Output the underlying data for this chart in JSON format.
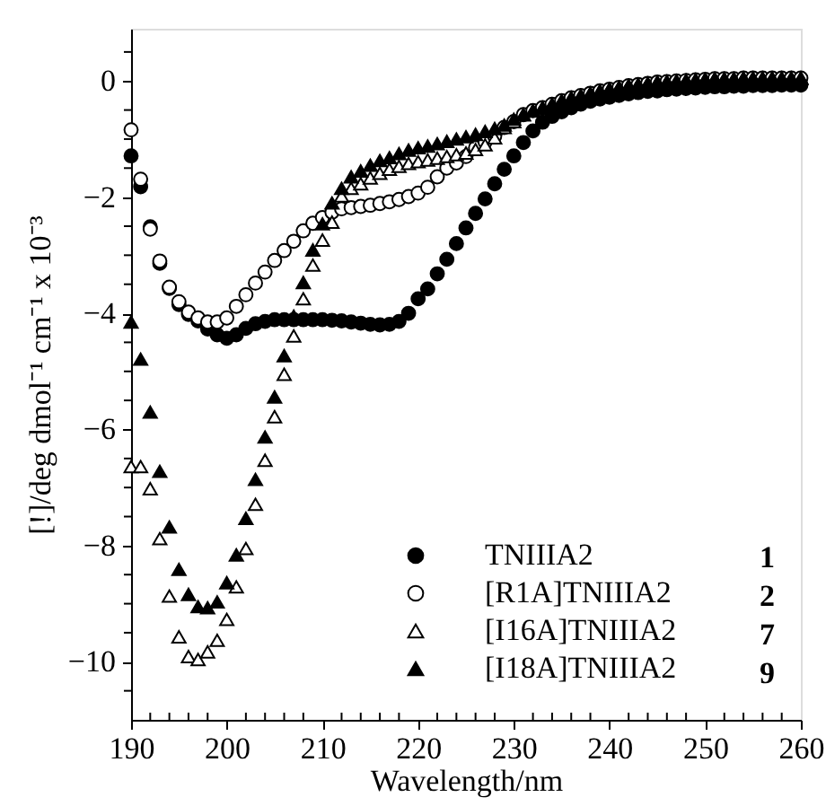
{
  "chart_data": {
    "type": "scatter",
    "xlabel": "Wavelength/nm",
    "ylabel": "[!]/deg dmol⁻¹ cm⁻¹ x 10⁻³",
    "legend": "bottom right",
    "annotations": [
      "1",
      "2",
      "7",
      "9"
    ],
    "xlim": [
      190,
      260
    ],
    "ylim": [
      -11,
      0.9
    ],
    "xticks": [
      190,
      {
        "value": 192,
        "label": null
      },
      {
        "value": 194,
        "label": null
      },
      {
        "value": 196,
        "label": null
      },
      {
        "value": 198,
        "label": null
      },
      200,
      {
        "value": 202,
        "label": null
      },
      {
        "value": 204,
        "label": null
      },
      {
        "value": 206,
        "label": null
      },
      {
        "value": 208,
        "label": null
      },
      210,
      {
        "value": 212,
        "label": null
      },
      {
        "value": 214,
        "label": null
      },
      {
        "value": 216,
        "label": null
      },
      {
        "value": 218,
        "label": null
      },
      220,
      {
        "value": 222,
        "label": null
      },
      {
        "value": 224,
        "label": null
      },
      {
        "value": 226,
        "label": null
      },
      {
        "value": 228,
        "label": null
      },
      230,
      {
        "value": 232,
        "label": null
      },
      {
        "value": 234,
        "label": null
      },
      {
        "value": 236,
        "label": null
      },
      {
        "value": 238,
        "label": null
      },
      240,
      {
        "value": 242,
        "label": null
      },
      {
        "value": 244,
        "label": null
      },
      {
        "value": 246,
        "label": null
      },
      {
        "value": 248,
        "label": null
      },
      250,
      {
        "value": 252,
        "label": null
      },
      {
        "value": 254,
        "label": null
      },
      {
        "value": 256,
        "label": null
      },
      {
        "value": 258,
        "label": null
      },
      260
    ],
    "yticks": [
      -10,
      {
        "value": -10.5,
        "label": null
      },
      {
        "value": -9.5,
        "label": null
      },
      {
        "value": -9,
        "label": null
      },
      {
        "value": -8.5,
        "label": null
      },
      -8,
      {
        "value": -7.5,
        "label": null
      },
      {
        "value": -7,
        "label": null
      },
      {
        "value": -6.5,
        "label": null
      },
      -6,
      {
        "value": -5.5,
        "label": null
      },
      {
        "value": -5,
        "label": null
      },
      {
        "value": -4.5,
        "label": null
      },
      -4,
      {
        "value": -3.5,
        "label": null
      },
      {
        "value": -3,
        "label": null
      },
      {
        "value": -2.5,
        "label": null
      },
      -2,
      {
        "value": -1.5,
        "label": null
      },
      {
        "value": -1,
        "label": null
      },
      {
        "value": -0.5,
        "label": null
      },
      0,
      {
        "value": 0.5,
        "label": null
      }
    ],
    "x": [
      190,
      191,
      192,
      193,
      194,
      195,
      196,
      197,
      198,
      199,
      200,
      201,
      202,
      203,
      204,
      205,
      206,
      207,
      208,
      209,
      210,
      211,
      212,
      213,
      214,
      215,
      216,
      217,
      218,
      219,
      220,
      221,
      222,
      223,
      224,
      225,
      226,
      227,
      228,
      229,
      230,
      231,
      232,
      233,
      234,
      235,
      236,
      237,
      238,
      239,
      240,
      241,
      242,
      243,
      244,
      245,
      246,
      247,
      248,
      249,
      250,
      251,
      252,
      253,
      254,
      255,
      256,
      257,
      258,
      259,
      260
    ],
    "series": [
      {
        "name": "TNIIIA2",
        "color": "#000000",
        "marker": "circle",
        "values": [
          -1.29,
          -1.82,
          -2.51,
          -3.14,
          -3.57,
          -3.85,
          -4.02,
          -4.13,
          -4.27,
          -4.37,
          -4.43,
          -4.37,
          -4.26,
          -4.18,
          -4.14,
          -4.11,
          -4.11,
          -4.11,
          -4.11,
          -4.11,
          -4.11,
          -4.12,
          -4.13,
          -4.15,
          -4.17,
          -4.19,
          -4.2,
          -4.19,
          -4.14,
          -4.0,
          -3.75,
          -3.58,
          -3.32,
          -3.07,
          -2.8,
          -2.53,
          -2.28,
          -2.03,
          -1.77,
          -1.52,
          -1.29,
          -1.06,
          -0.86,
          -0.71,
          -0.61,
          -0.53,
          -0.46,
          -0.4,
          -0.35,
          -0.31,
          -0.28,
          -0.25,
          -0.22,
          -0.2,
          -0.18,
          -0.17,
          -0.15,
          -0.14,
          -0.13,
          -0.12,
          -0.11,
          -0.1,
          -0.1,
          -0.09,
          -0.09,
          -0.08,
          -0.08,
          -0.08,
          -0.07,
          -0.07,
          -0.07
        ]
      },
      {
        "name": "[R1A]TNIIIA2",
        "color": "#ffffff",
        "marker": "circle",
        "values": [
          -0.84,
          -1.69,
          -2.55,
          -3.1,
          -3.55,
          -3.8,
          -3.98,
          -4.08,
          -4.15,
          -4.15,
          -4.08,
          -3.88,
          -3.68,
          -3.48,
          -3.29,
          -3.09,
          -2.92,
          -2.76,
          -2.58,
          -2.45,
          -2.35,
          -2.26,
          -2.2,
          -2.18,
          -2.16,
          -2.14,
          -2.11,
          -2.08,
          -2.04,
          -1.99,
          -1.93,
          -1.83,
          -1.65,
          -1.5,
          -1.41,
          -1.3,
          -1.15,
          -1.05,
          -0.95,
          -0.8,
          -0.7,
          -0.58,
          -0.51,
          -0.46,
          -0.4,
          -0.34,
          -0.29,
          -0.25,
          -0.21,
          -0.17,
          -0.14,
          -0.11,
          -0.08,
          -0.06,
          -0.04,
          -0.02,
          -0.01,
          0.0,
          0.01,
          0.02,
          0.03,
          0.04,
          0.04,
          0.04,
          0.05,
          0.05,
          0.05,
          0.05,
          0.05,
          0.05,
          0.05
        ]
      },
      {
        "name": "[I16A]TNIIIA2",
        "color": "#ffffff",
        "marker": "triangle",
        "values": [
          -6.64,
          -6.64,
          -7.02,
          -7.88,
          -8.87,
          -9.57,
          -9.91,
          -9.96,
          -9.83,
          -9.63,
          -9.27,
          -8.71,
          -8.05,
          -7.29,
          -6.53,
          -5.78,
          -5.05,
          -4.39,
          -3.75,
          -3.17,
          -2.74,
          -2.43,
          -1.98,
          -1.85,
          -1.77,
          -1.67,
          -1.59,
          -1.52,
          -1.47,
          -1.42,
          -1.39,
          -1.36,
          -1.33,
          -1.3,
          -1.27,
          -1.24,
          -1.18,
          -1.1,
          -0.98,
          -0.8,
          -0.7,
          -0.58,
          -0.51,
          -0.46,
          -0.4,
          -0.34,
          -0.29,
          -0.25,
          -0.21,
          -0.17,
          -0.14,
          -0.11,
          -0.08,
          -0.06,
          -0.04,
          -0.02,
          -0.01,
          0.0,
          0.01,
          0.02,
          0.03,
          0.04,
          0.04,
          0.04,
          0.05,
          0.05,
          0.05,
          0.05,
          0.05,
          0.05,
          0.05
        ]
      },
      {
        "name": "[I18A]TNIIIA2",
        "color": "#000000",
        "marker": "triangle",
        "values": [
          -4.15,
          -4.79,
          -5.7,
          -6.72,
          -7.68,
          -8.41,
          -8.84,
          -9.05,
          -9.07,
          -8.97,
          -8.64,
          -8.16,
          -7.53,
          -6.86,
          -6.13,
          -5.44,
          -4.73,
          -4.05,
          -3.47,
          -2.91,
          -2.46,
          -2.1,
          -1.85,
          -1.65,
          -1.55,
          -1.45,
          -1.37,
          -1.32,
          -1.25,
          -1.19,
          -1.15,
          -1.12,
          -1.08,
          -1.04,
          -1.0,
          -0.96,
          -0.92,
          -0.87,
          -0.82,
          -0.76,
          -0.66,
          -0.58,
          -0.51,
          -0.46,
          -0.4,
          -0.34,
          -0.29,
          -0.25,
          -0.21,
          -0.17,
          -0.14,
          -0.11,
          -0.08,
          -0.06,
          -0.04,
          -0.02,
          -0.01,
          0.0,
          0.01,
          0.02,
          0.03,
          0.04,
          0.04,
          0.04,
          0.05,
          0.05,
          0.05,
          0.05,
          0.05,
          0.05,
          0.05
        ]
      }
    ]
  }
}
